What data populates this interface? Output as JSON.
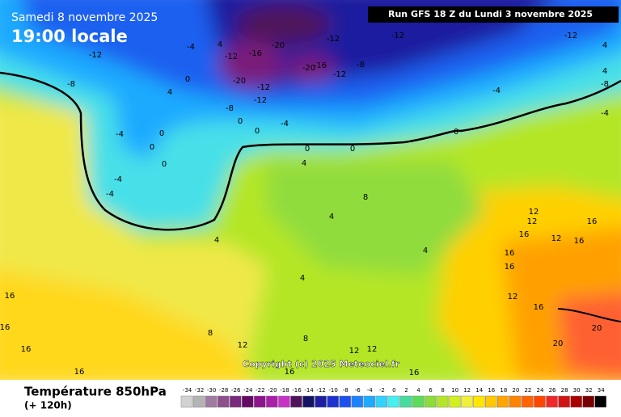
{
  "header": {
    "date": "Samedi 8 novembre 2025",
    "time": "19:00 locale",
    "run": "Run GFS 18 Z du Lundi 3 novembre 2025"
  },
  "footer": {
    "title": "Température 850hPa",
    "lead": "(+ 120h)"
  },
  "map": {
    "copyright": "Copyright (c) 2025 Meteociel.fr",
    "contour_labels": [
      -12,
      -8,
      -4,
      -4,
      -4,
      0,
      0,
      0,
      4,
      4,
      0,
      4,
      -4,
      -12,
      -16,
      -20,
      -20,
      -12,
      -12,
      -8,
      0,
      0,
      -4,
      -12,
      -12,
      -20,
      -16,
      -8,
      -12,
      -4,
      0,
      0,
      0,
      4,
      8,
      4,
      4,
      4,
      8,
      12,
      8,
      12,
      12,
      16,
      16,
      16,
      16,
      16,
      16,
      12,
      12,
      16,
      12,
      16,
      16,
      16,
      16,
      12,
      16,
      20,
      20,
      -12,
      -8,
      -4,
      4,
      4
    ]
  },
  "legend": {
    "values": [
      -34,
      -32,
      -30,
      -28,
      -26,
      -24,
      -22,
      -20,
      -18,
      -16,
      -14,
      -12,
      -10,
      -8,
      -6,
      -4,
      -2,
      0,
      2,
      4,
      6,
      8,
      10,
      12,
      14,
      16,
      18,
      20,
      22,
      24,
      26,
      28,
      30,
      32,
      34
    ],
    "colors": [
      "#d2d2d2",
      "#b4b4b4",
      "#a07aa0",
      "#8c508c",
      "#7a2a7a",
      "#640a64",
      "#8c148c",
      "#aa1eaa",
      "#c832c8",
      "#50145a",
      "#141464",
      "#1e1ea0",
      "#1e32d2",
      "#1e50f0",
      "#1e82ff",
      "#1eaaff",
      "#32d2ff",
      "#46f0f0",
      "#46dca0",
      "#5adc5a",
      "#8cdc3c",
      "#b4e628",
      "#d2f01e",
      "#f0f03c",
      "#ffe600",
      "#ffc800",
      "#ffa500",
      "#ff8200",
      "#ff6400",
      "#ff4600",
      "#f02828",
      "#d21414",
      "#aa0000",
      "#780000",
      "#000000"
    ]
  }
}
